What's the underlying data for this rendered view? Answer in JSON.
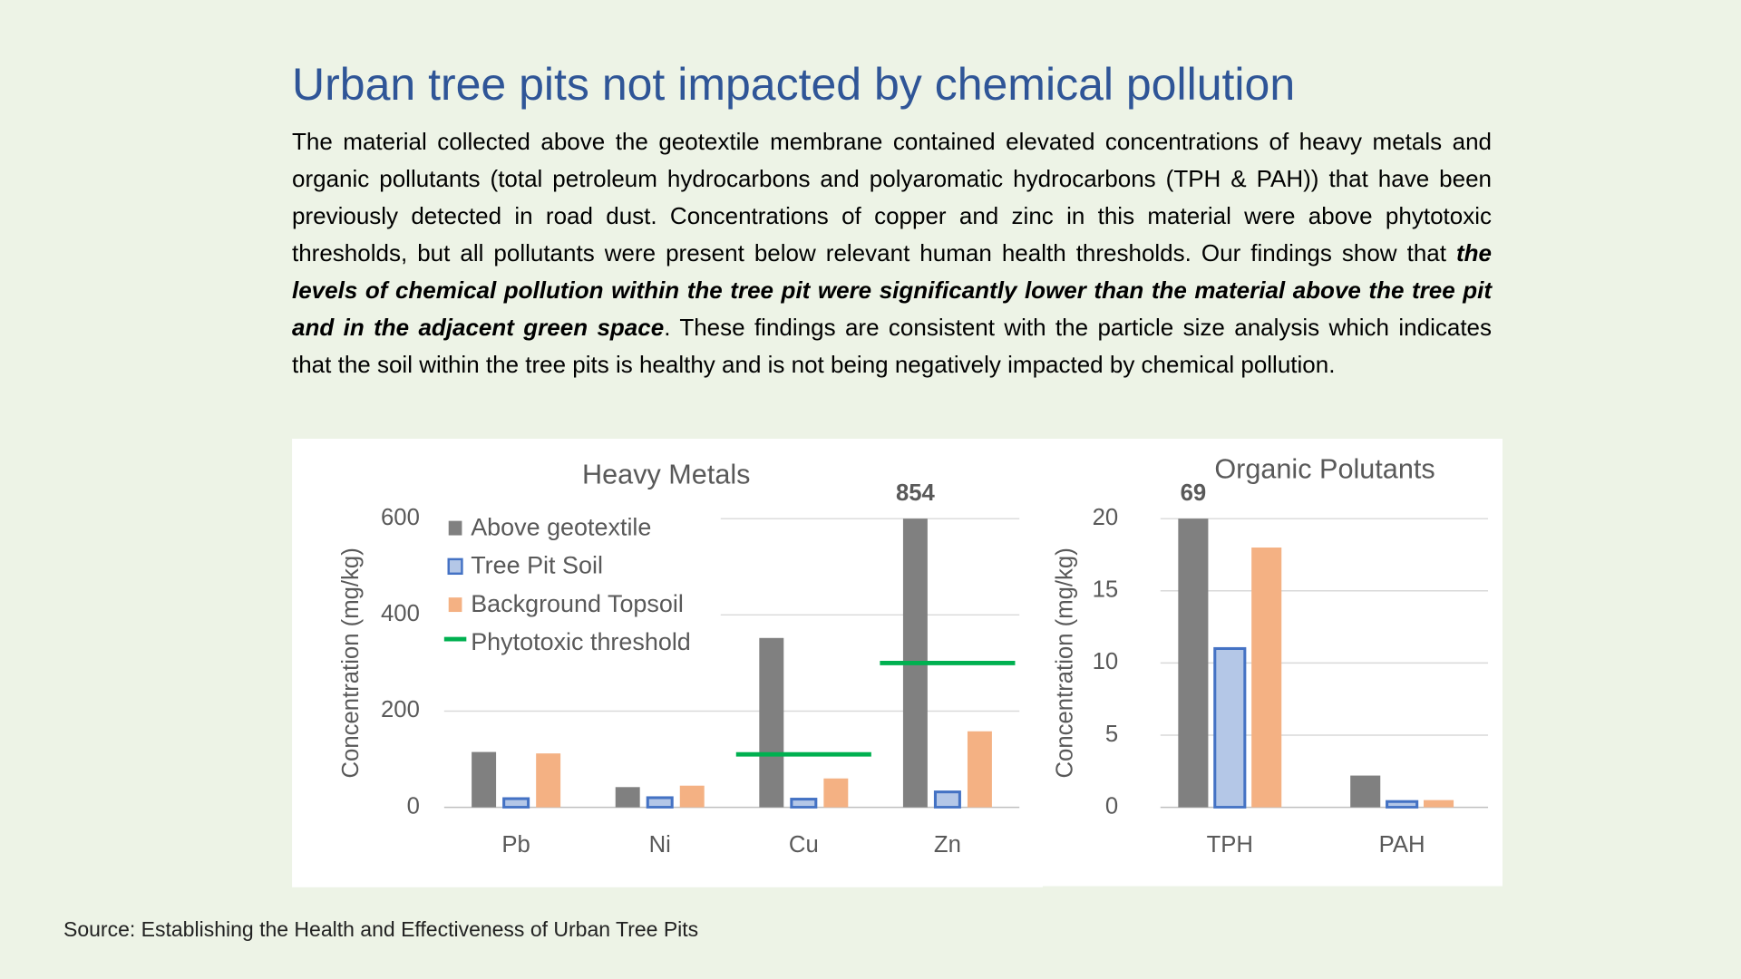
{
  "title": "Urban tree pits not impacted by chemical pollution",
  "body": {
    "before": "The material collected above the geotextile membrane contained elevated concentrations of heavy metals and organic pollutants (total petroleum hydrocarbons and polyaromatic hydrocarbons (TPH & PAH)) that have been previously detected in road dust. Concentrations of copper and zinc in this material were above phytotoxic thresholds, but all pollutants were present below relevant human health thresholds. Our findings show that ",
    "emphasis": "the levels of chemical pollution within the tree pit were significantly lower than the material above the tree pit and in the adjacent green space",
    "after": ". These findings are consistent with the particle size analysis which indicates that the soil within the tree pits is healthy and is not being negatively impacted by chemical pollution."
  },
  "source": "Source: Establishing the Health and Effectiveness of Urban Tree Pits",
  "chart_data": [
    {
      "type": "bar",
      "title": "Heavy Metals",
      "y_label": "Concentration (mg/kg)",
      "categories": [
        "Pb",
        "Ni",
        "Cu",
        "Zn"
      ],
      "series": [
        {
          "name": "Above geotextile",
          "color": "#808080",
          "values": [
            115,
            42,
            352,
            854
          ],
          "value_labels": [
            null,
            null,
            null,
            "854"
          ]
        },
        {
          "name": "Tree Pit Soil",
          "color": "#b4c7e7",
          "edge": "#4472c4",
          "values": [
            18,
            20,
            17,
            32
          ]
        },
        {
          "name": "Background Topsoil",
          "color": "#f4b183",
          "values": [
            112,
            45,
            60,
            158
          ]
        },
        {
          "name": "Phytotoxic threshold",
          "type": "line",
          "color": "#00b050",
          "values": [
            null,
            null,
            110,
            300
          ]
        }
      ],
      "ylim": [
        0,
        600
      ],
      "yticks": [
        0,
        200,
        400,
        600
      ],
      "grid": true,
      "legend": "upper left"
    },
    {
      "type": "bar",
      "title": "Organic Polutants",
      "y_label": "Concentration (mg/kg)",
      "categories": [
        "TPH",
        "PAH"
      ],
      "series": [
        {
          "name": "Above geotextile",
          "color": "#808080",
          "values": [
            69,
            2.2
          ],
          "value_labels": [
            "69",
            null
          ]
        },
        {
          "name": "Tree Pit Soil",
          "color": "#b4c7e7",
          "edge": "#4472c4",
          "values": [
            11,
            0.4
          ]
        },
        {
          "name": "Background Topsoil",
          "color": "#f4b183",
          "values": [
            18,
            0.5
          ]
        }
      ],
      "ylim": [
        0,
        20
      ],
      "yticks": [
        0,
        5,
        10,
        15,
        20
      ],
      "grid": true,
      "legend": false
    }
  ]
}
